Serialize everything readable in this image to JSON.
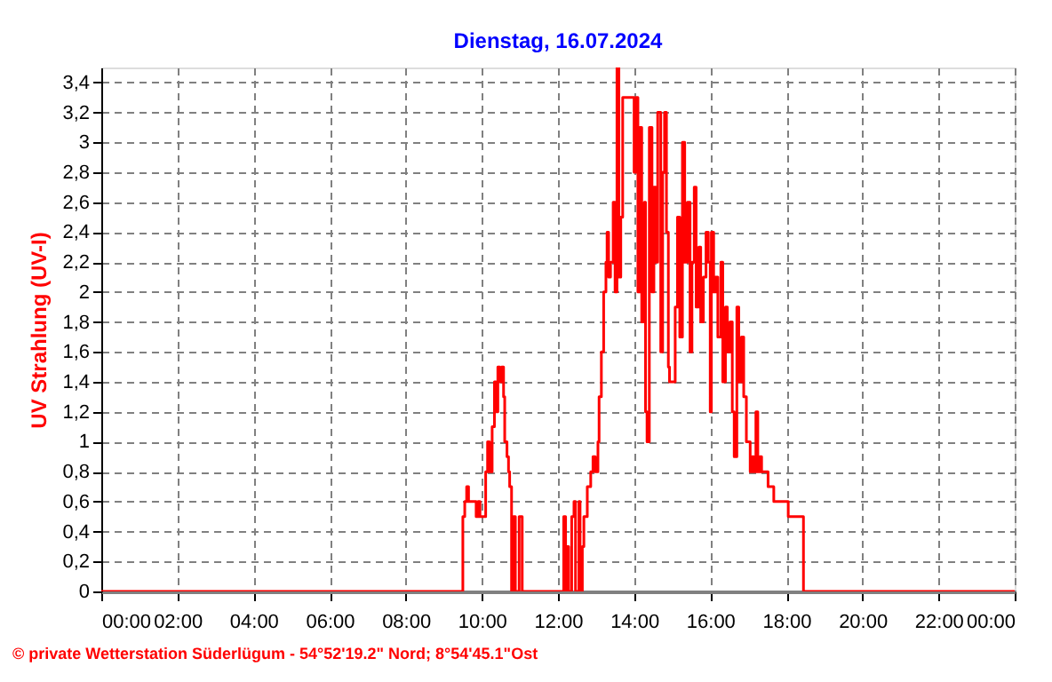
{
  "chart_data": {
    "type": "step",
    "title": "Dienstag, 16.07.2024",
    "ylabel": "UV Strahlung  (UV-I)",
    "x": [
      0,
      9.5,
      9.55,
      9.6,
      9.65,
      9.85,
      9.9,
      9.95,
      10.1,
      10.15,
      10.2,
      10.27,
      10.33,
      10.37,
      10.42,
      10.47,
      10.52,
      10.57,
      10.6,
      10.66,
      10.7,
      10.73,
      10.78,
      10.83,
      10.88,
      10.98,
      11.06,
      12.15,
      12.2,
      12.23,
      12.28,
      12.36,
      12.42,
      12.46,
      12.55,
      12.58,
      12.64,
      12.68,
      12.77,
      12.86,
      12.92,
      12.98,
      13.05,
      13.08,
      13.14,
      13.2,
      13.26,
      13.29,
      13.33,
      13.38,
      13.45,
      13.5,
      13.55,
      13.6,
      13.65,
      13.7,
      14.0,
      14.05,
      14.1,
      14.15,
      14.2,
      14.27,
      14.3,
      14.34,
      14.4,
      14.47,
      14.52,
      14.57,
      14.62,
      14.7,
      14.75,
      14.8,
      14.85,
      14.9,
      14.93,
      15.08,
      15.14,
      15.2,
      15.27,
      15.33,
      15.4,
      15.47,
      15.52,
      15.58,
      15.63,
      15.7,
      15.75,
      15.82,
      15.89,
      15.95,
      16.0,
      16.03,
      16.09,
      16.14,
      16.2,
      16.28,
      16.33,
      16.4,
      16.45,
      16.52,
      16.58,
      16.63,
      16.7,
      16.75,
      16.82,
      16.88,
      16.95,
      17.05,
      17.1,
      17.15,
      17.2,
      17.25,
      17.3,
      17.35,
      17.52,
      17.67,
      18.05,
      18.45,
      24
    ],
    "series": [
      {
        "color": "#ff0000",
        "values": [
          0,
          0.5,
          0.6,
          0.7,
          0.6,
          0.5,
          0.6,
          0.5,
          0.8,
          1.0,
          0.8,
          1.1,
          1.4,
          1.2,
          1.5,
          1.4,
          1.5,
          1.3,
          1.0,
          0.9,
          0.8,
          0.7,
          0,
          0.5,
          0,
          0.5,
          0,
          0.5,
          0,
          0.3,
          0,
          0.5,
          0.6,
          0,
          0.6,
          0,
          0.3,
          0.5,
          0.7,
          0.8,
          0.9,
          0.8,
          1.0,
          1.3,
          1.6,
          2.0,
          2.2,
          2.4,
          2.1,
          2.2,
          2.6,
          2.0,
          3.5,
          2.1,
          2.5,
          3.3,
          2.8,
          3.3,
          2.0,
          3.1,
          1.8,
          2.6,
          1.2,
          1.0,
          3.1,
          2.0,
          2.7,
          2.2,
          3.2,
          1.6,
          2.8,
          3.2,
          2.4,
          1.5,
          1.4,
          1.9,
          2.5,
          1.7,
          3.0,
          2.2,
          2.6,
          1.6,
          2.2,
          2.7,
          1.9,
          2.3,
          1.8,
          2.1,
          2.4,
          2.2,
          1.2,
          2.4,
          2.0,
          2.1,
          1.7,
          2.2,
          1.4,
          1.9,
          1.6,
          1.8,
          1.2,
          0.9,
          1.9,
          1.4,
          1.7,
          1.3,
          1.0,
          0.8,
          0.9,
          0.8,
          1.2,
          0.8,
          0.9,
          0.8,
          0.7,
          0.6,
          0.5,
          0,
          0
        ]
      }
    ],
    "xlim": [
      0,
      24
    ],
    "ylim": [
      0,
      3.5
    ],
    "xticks": [
      {
        "value": 0,
        "label": "00:00"
      },
      {
        "value": 2,
        "label": "02:00"
      },
      {
        "value": 4,
        "label": "04:00"
      },
      {
        "value": 6,
        "label": "06:00"
      },
      {
        "value": 8,
        "label": "08:00"
      },
      {
        "value": 10,
        "label": "10:00"
      },
      {
        "value": 12,
        "label": "12:00"
      },
      {
        "value": 14,
        "label": "14:00"
      },
      {
        "value": 16,
        "label": "16:00"
      },
      {
        "value": 18,
        "label": "18:00"
      },
      {
        "value": 20,
        "label": "20:00"
      },
      {
        "value": 22,
        "label": "22:00"
      },
      {
        "value": 24,
        "label": "00:00"
      }
    ],
    "yticks": [
      0,
      {
        "value": 0.2,
        "label": "0,2"
      },
      {
        "value": 0.4,
        "label": "0,4"
      },
      {
        "value": 0.6,
        "label": "0,6"
      },
      {
        "value": 0.8,
        "label": "0,8"
      },
      1,
      {
        "value": 1.2,
        "label": "1,2"
      },
      {
        "value": 1.4,
        "label": "1,4"
      },
      {
        "value": 1.6,
        "label": "1,6"
      },
      {
        "value": 1.8,
        "label": "1,8"
      },
      2,
      {
        "value": 2.2,
        "label": "2,2"
      },
      {
        "value": 2.4,
        "label": "2,4"
      },
      {
        "value": 2.6,
        "label": "2,6"
      },
      {
        "value": 2.8,
        "label": "2,8"
      },
      3,
      {
        "value": 3.2,
        "label": "3,2"
      },
      {
        "value": 3.4,
        "label": "3,4"
      }
    ],
    "grid": true,
    "line_style": "solid",
    "marker": "none",
    "annotations": [
      "© private Wetterstation Süderlügum - 54°52'19.2\" Nord; 8°54'45.1\"Ost"
    ]
  }
}
